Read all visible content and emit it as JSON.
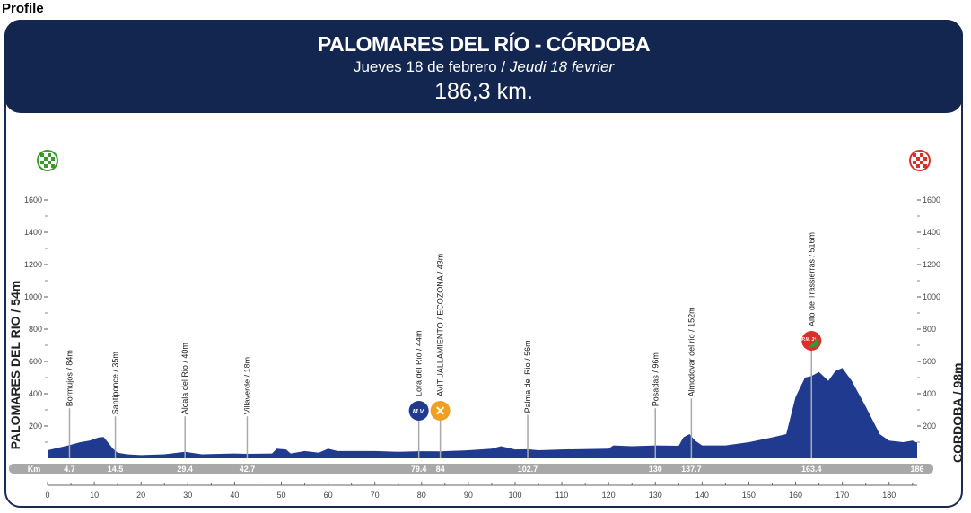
{
  "page_title": "Profile",
  "header": {
    "title": "PALOMARES DEL RÍO - CÓRDOBA",
    "date_es": "Jueves 18 de febrero / ",
    "date_fr": "Jeudi 18 fevrier",
    "distance": "186,3 km."
  },
  "chart_data": {
    "type": "area",
    "xlabel": "Km",
    "ylabel": "",
    "xlim": [
      0,
      186
    ],
    "ylim": [
      0,
      1800
    ],
    "x_ticks": [
      0,
      10,
      20,
      30,
      40,
      50,
      60,
      70,
      80,
      90,
      100,
      110,
      120,
      130,
      140,
      150,
      160,
      170,
      180
    ],
    "y_ticks": [
      200,
      400,
      600,
      800,
      1000,
      1200,
      1400,
      1600
    ],
    "color": "#1f3a8f",
    "start_label": "PALOMARES DEL RIO / 54m",
    "finish_label": "CORDOBA / 98m",
    "profile": [
      [
        0,
        50
      ],
      [
        3,
        70
      ],
      [
        5,
        84
      ],
      [
        7,
        100
      ],
      [
        9,
        110
      ],
      [
        11,
        130
      ],
      [
        12,
        132
      ],
      [
        14,
        60
      ],
      [
        15,
        35
      ],
      [
        17,
        25
      ],
      [
        20,
        20
      ],
      [
        25,
        25
      ],
      [
        29.4,
        40
      ],
      [
        33,
        25
      ],
      [
        40,
        30
      ],
      [
        42.7,
        28
      ],
      [
        48,
        30
      ],
      [
        49,
        60
      ],
      [
        51,
        55
      ],
      [
        52,
        30
      ],
      [
        55,
        45
      ],
      [
        58,
        35
      ],
      [
        60,
        60
      ],
      [
        62,
        45
      ],
      [
        70,
        45
      ],
      [
        75,
        40
      ],
      [
        79.4,
        44
      ],
      [
        84,
        43
      ],
      [
        90,
        50
      ],
      [
        95,
        60
      ],
      [
        97,
        75
      ],
      [
        100,
        55
      ],
      [
        102.7,
        56
      ],
      [
        105,
        50
      ],
      [
        110,
        55
      ],
      [
        120,
        60
      ],
      [
        121,
        80
      ],
      [
        125,
        75
      ],
      [
        130,
        80
      ],
      [
        135,
        78
      ],
      [
        136,
        130
      ],
      [
        137.3,
        150
      ],
      [
        138.5,
        110
      ],
      [
        140,
        80
      ],
      [
        145,
        80
      ],
      [
        150,
        100
      ],
      [
        155,
        130
      ],
      [
        158,
        150
      ],
      [
        160,
        380
      ],
      [
        162,
        500
      ],
      [
        163.4,
        510
      ],
      [
        165,
        535
      ],
      [
        167,
        480
      ],
      [
        168.5,
        540
      ],
      [
        170,
        560
      ],
      [
        172,
        480
      ],
      [
        175,
        320
      ],
      [
        178,
        150
      ],
      [
        180,
        110
      ],
      [
        183,
        100
      ],
      [
        185,
        110
      ],
      [
        186,
        98
      ]
    ],
    "km_bar": [
      "4.7",
      "14.5",
      "29.4",
      "42.7",
      "79.4",
      "84",
      "102.7",
      "130",
      "137.7",
      "163.4",
      "186"
    ],
    "waypoints": [
      {
        "km": 4.7,
        "label": "Bormujos / 84m"
      },
      {
        "km": 14.5,
        "label": "Santiponce / 35m"
      },
      {
        "km": 29.4,
        "label": "Alcala del Rio / 40m"
      },
      {
        "km": 42.7,
        "label": "Villaverde / 18m"
      },
      {
        "km": 79.4,
        "label": "Lora del Rio / 44m",
        "icon": "mv-badge-icon",
        "icon_text": "M.V.",
        "icon_color": "#1f3a8f"
      },
      {
        "km": 84,
        "label": "AVITUALLAMIENTO / ECOZONA / 43m",
        "icon": "feed-zone-icon",
        "icon_color": "#f0a020"
      },
      {
        "km": 102.7,
        "label": "Palma del Rio / 56m"
      },
      {
        "km": 130,
        "label": "Posadas / 96m"
      },
      {
        "km": 137.7,
        "label": "Almodovar del rio / 152m"
      },
      {
        "km": 163.4,
        "label": "Alto de Trassierras / 516m",
        "icon": "mountain-climb-icon",
        "icon_text": "P.M. 3ª",
        "icon_color": "#d9302a"
      }
    ]
  }
}
